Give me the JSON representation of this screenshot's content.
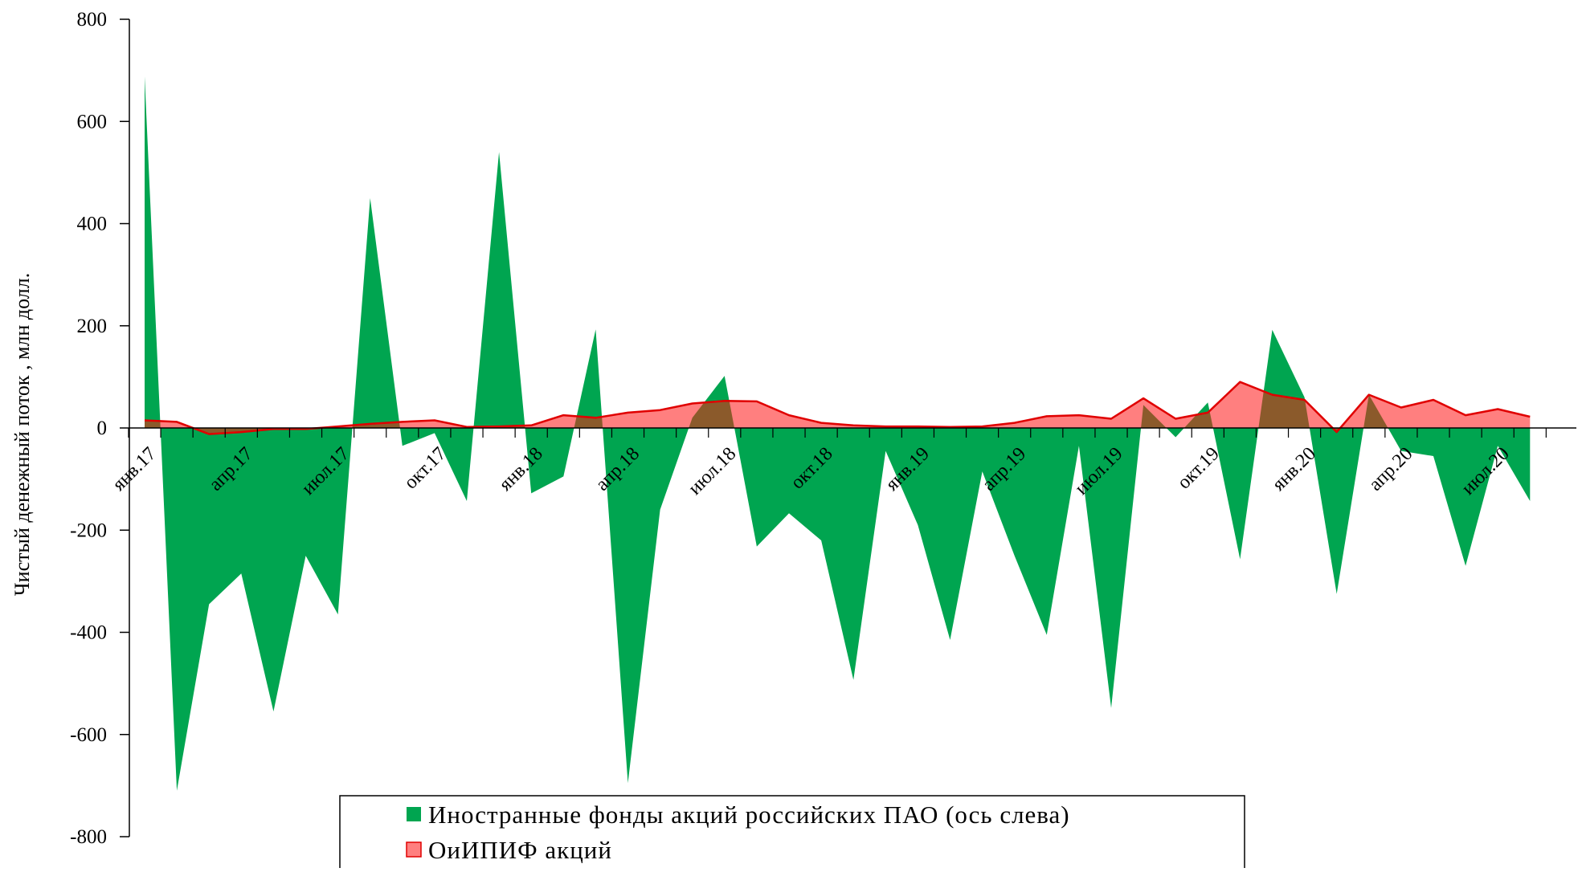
{
  "chart_data": {
    "type": "area",
    "title": "",
    "xlabel": "",
    "ylabel": "Чистый денежный поток , млн долл.",
    "ylim": [
      -800,
      800
    ],
    "y_ticks": [
      "800",
      "600",
      "400",
      "200",
      "0",
      "-200",
      "-400",
      "-600",
      "-800"
    ],
    "y_tick_values": [
      800,
      600,
      400,
      200,
      0,
      -200,
      -400,
      -600,
      -800
    ],
    "x_labels": [
      "янв.17",
      "апр.17",
      "июл.17",
      "окт.17",
      "янв.18",
      "апр.18",
      "июл.18",
      "окт.18",
      "янв.19",
      "апр.19",
      "июл.19",
      "окт.19",
      "янв.20",
      "апр.20",
      "июл.20"
    ],
    "x_label_month_index": [
      0,
      3,
      6,
      9,
      12,
      15,
      18,
      21,
      24,
      27,
      30,
      33,
      36,
      39,
      42
    ],
    "month_count": 45,
    "grid": false,
    "legend_position": "bottom-center",
    "colors": {
      "foreign": "#00a550",
      "domestic_fill": "#ff7f7f",
      "domestic_line": "#e00000",
      "overlap": "#8b5a2b"
    },
    "series": [
      {
        "name": "Иностранные фонды акций российских ПАО (ось слева)",
        "values": [
          688,
          -710,
          -345,
          -285,
          -555,
          -250,
          -365,
          450,
          -35,
          -10,
          -143,
          540,
          -128,
          -95,
          193,
          -695,
          -160,
          20,
          102,
          -232,
          -167,
          -220,
          -493,
          -45,
          -190,
          -415,
          -85,
          -250,
          -405,
          -35,
          -548,
          45,
          -18,
          50,
          -257,
          192,
          60,
          -325,
          65,
          -45,
          -55,
          -270,
          -35,
          -143
        ]
      },
      {
        "name": "ОиИПИФ акций",
        "values": [
          15,
          12,
          -12,
          -8,
          -2,
          -2,
          3,
          8,
          12,
          15,
          2,
          3,
          5,
          25,
          20,
          30,
          35,
          48,
          53,
          52,
          25,
          10,
          5,
          3,
          3,
          2,
          3,
          10,
          23,
          25,
          18,
          58,
          18,
          30,
          90,
          65,
          55,
          -8,
          65,
          40,
          55,
          25,
          37,
          22
        ]
      }
    ]
  }
}
